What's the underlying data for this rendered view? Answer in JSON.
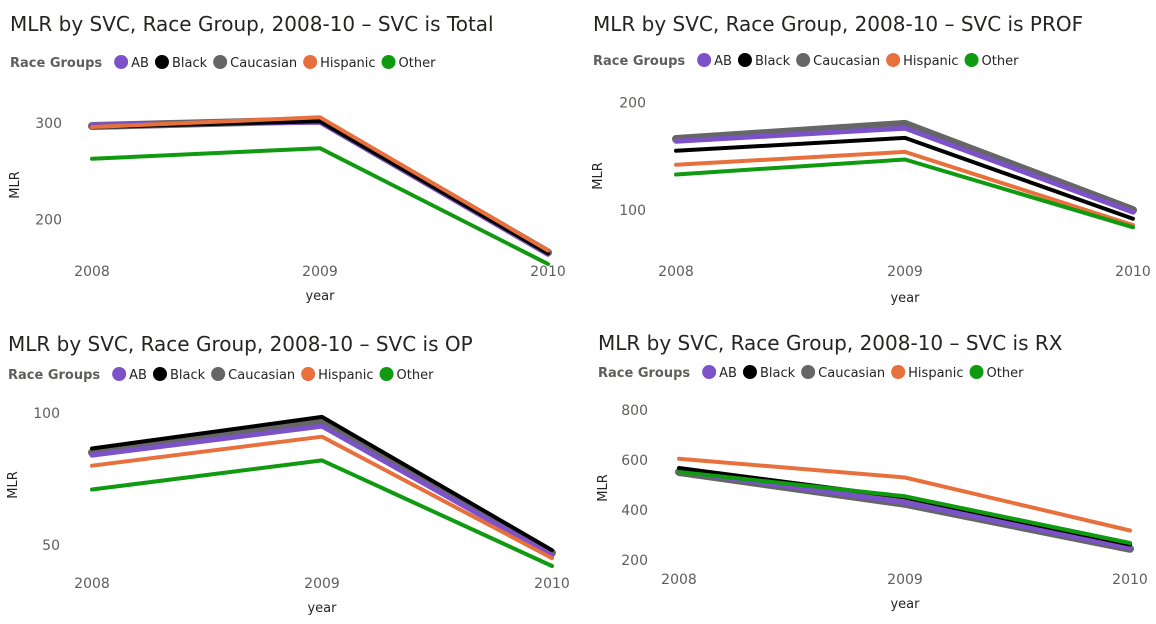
{
  "legend_title": "Race Groups",
  "series_colors": {
    "AB": "#7B52C8",
    "Black": "#000000",
    "Caucasian": "#666666",
    "Hispanic": "#E8703C",
    "Other": "#109A10"
  },
  "chart_data": [
    {
      "type": "line",
      "title": "MLR by SVC, Race Group, 2008-10 – SVC is Total",
      "xlabel": "year",
      "ylabel": "MLR",
      "x": [
        "2008",
        "2009",
        "2010"
      ],
      "yticks": [
        200,
        300
      ],
      "ylim": [
        155,
        325
      ],
      "legend": [
        "AB",
        "Black",
        "Caucasian",
        "Hispanic",
        "Other"
      ],
      "series": [
        {
          "name": "Caucasian",
          "values": [
            297,
            303,
            166
          ]
        },
        {
          "name": "AB",
          "values": [
            298,
            301,
            164
          ]
        },
        {
          "name": "Black",
          "values": [
            296,
            302,
            165
          ]
        },
        {
          "name": "Hispanic",
          "values": [
            296,
            306,
            168
          ]
        },
        {
          "name": "Other",
          "values": [
            263,
            274,
            154
          ]
        }
      ]
    },
    {
      "type": "line",
      "title": "MLR by SVC, Race Group, 2008-10 – SVC is PROF",
      "xlabel": "year",
      "ylabel": "MLR",
      "x": [
        "2008",
        "2009",
        "2010"
      ],
      "yticks": [
        100,
        200
      ],
      "ylim": [
        62,
        205
      ],
      "legend": [
        "AB",
        "Black",
        "Caucasian",
        "Hispanic",
        "Other"
      ],
      "series": [
        {
          "name": "Caucasian",
          "values": [
            166,
            180,
            100
          ]
        },
        {
          "name": "AB",
          "values": [
            164,
            176,
            98
          ]
        },
        {
          "name": "Black",
          "values": [
            155,
            167,
            92
          ]
        },
        {
          "name": "Hispanic",
          "values": [
            142,
            154,
            86
          ]
        },
        {
          "name": "Other",
          "values": [
            133,
            147,
            84
          ]
        }
      ]
    },
    {
      "type": "line",
      "title": "MLR by SVC, Race Group, 2008-10 – SVC is OP",
      "xlabel": "year",
      "ylabel": "MLR",
      "x": [
        "2008",
        "2009",
        "2010"
      ],
      "yticks": [
        50,
        100
      ],
      "ylim": [
        42,
        103
      ],
      "legend": [
        "AB",
        "Black",
        "Caucasian",
        "Hispanic",
        "Other"
      ],
      "series": [
        {
          "name": "Caucasian",
          "values": [
            85,
            97,
            47
          ]
        },
        {
          "name": "AB",
          "values": [
            84,
            95,
            46
          ]
        },
        {
          "name": "Black",
          "values": [
            86.5,
            98.5,
            48
          ]
        },
        {
          "name": "Hispanic",
          "values": [
            80,
            91,
            45
          ]
        },
        {
          "name": "Other",
          "values": [
            71,
            82,
            42
          ]
        }
      ]
    },
    {
      "type": "line",
      "title": "MLR by SVC, Race Group, 2008-10 – SVC is RX",
      "xlabel": "year",
      "ylabel": "MLR",
      "x": [
        "2008",
        "2009",
        "2010"
      ],
      "yticks": [
        200,
        400,
        600,
        800
      ],
      "ylim": [
        200,
        840
      ],
      "legend": [
        "AB",
        "Black",
        "Caucasian",
        "Hispanic",
        "Other"
      ],
      "series": [
        {
          "name": "Caucasian",
          "values": [
            552,
            425,
            245
          ]
        },
        {
          "name": "AB",
          "values": [
            555,
            430,
            248
          ]
        },
        {
          "name": "Black",
          "values": [
            568,
            450,
            262
          ]
        },
        {
          "name": "Other",
          "values": [
            552,
            455,
            268
          ]
        },
        {
          "name": "Hispanic",
          "values": [
            605,
            530,
            318
          ]
        }
      ]
    }
  ]
}
